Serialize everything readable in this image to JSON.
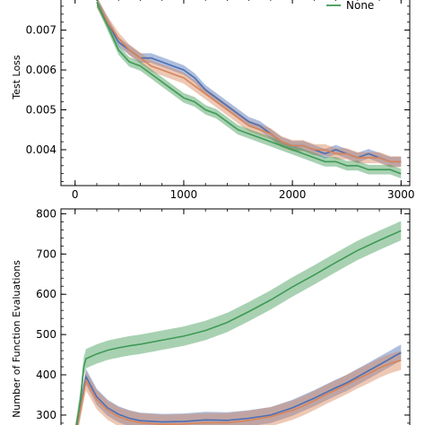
{
  "chart_data": [
    {
      "type": "line",
      "ylabel": "Test Loss",
      "xlabel": "",
      "xlim": [
        -130,
        3080
      ],
      "ylim": [
        0.0031,
        0.0078
      ],
      "x_ticks": [
        0,
        1000,
        2000,
        3000
      ],
      "x_tick_labels": [
        "0",
        "1000",
        "2000",
        "3000"
      ],
      "y_ticks": [
        0.004,
        0.005,
        0.006,
        0.007
      ],
      "y_tick_labels": [
        "0.004",
        "0.005",
        "0.006",
        "0.007"
      ],
      "legend": {
        "location": "top-right",
        "entries": [
          {
            "label": "None",
            "color": "#3f9a55"
          }
        ]
      },
      "series": [
        {
          "name": "",
          "color": "#4a6fb5",
          "x": [
            200,
            300,
            400,
            500,
            600,
            700,
            800,
            900,
            1000,
            1100,
            1200,
            1300,
            1400,
            1500,
            1600,
            1700,
            1800,
            1900,
            2000,
            2100,
            2200,
            2300,
            2400,
            2500,
            2600,
            2700,
            2800,
            2900,
            3000
          ],
          "y": [
            0.0077,
            0.0072,
            0.0067,
            0.0065,
            0.0063,
            0.0063,
            0.0062,
            0.0061,
            0.006,
            0.0058,
            0.0055,
            0.0053,
            0.0051,
            0.0049,
            0.0047,
            0.0046,
            0.0044,
            0.0042,
            0.0041,
            0.0041,
            0.004,
            0.0039,
            0.004,
            0.0039,
            0.0038,
            0.0039,
            0.0038,
            0.0037,
            0.0037
          ],
          "band": 0.00012
        },
        {
          "name": "",
          "color": "#d8845a",
          "x": [
            200,
            300,
            400,
            500,
            600,
            700,
            800,
            900,
            1000,
            1100,
            1200,
            1300,
            1400,
            1500,
            1600,
            1700,
            1800,
            1900,
            2000,
            2100,
            2200,
            2300,
            2400,
            2500,
            2600,
            2700,
            2800,
            2900,
            3000
          ],
          "y": [
            0.0077,
            0.0072,
            0.0068,
            0.0065,
            0.0063,
            0.0061,
            0.006,
            0.0059,
            0.0058,
            0.0056,
            0.0054,
            0.0052,
            0.005,
            0.0048,
            0.0046,
            0.0045,
            0.0044,
            0.0042,
            0.0041,
            0.0041,
            0.004,
            0.004,
            0.0039,
            0.0039,
            0.0038,
            0.0038,
            0.0038,
            0.0037,
            0.0037
          ],
          "band": 0.00014
        },
        {
          "name": "None",
          "color": "#3f9a55",
          "x": [
            200,
            300,
            400,
            500,
            600,
            700,
            800,
            900,
            1000,
            1100,
            1200,
            1300,
            1400,
            1500,
            1600,
            1700,
            1800,
            1900,
            2000,
            2100,
            2200,
            2300,
            2400,
            2500,
            2600,
            2700,
            2800,
            2900,
            3000
          ],
          "y": [
            0.0077,
            0.0071,
            0.0065,
            0.0062,
            0.0061,
            0.0059,
            0.0057,
            0.0055,
            0.0053,
            0.0052,
            0.005,
            0.0049,
            0.0047,
            0.0045,
            0.0044,
            0.0043,
            0.0042,
            0.0041,
            0.004,
            0.0039,
            0.0038,
            0.0037,
            0.0037,
            0.0036,
            0.0036,
            0.0035,
            0.0035,
            0.0035,
            0.0034
          ],
          "band": 0.00012
        }
      ]
    },
    {
      "type": "line",
      "ylabel": "Number of Function Evaluations",
      "xlabel": "",
      "xlim": [
        -130,
        3080
      ],
      "ylim": [
        262,
        812
      ],
      "y_ticks": [
        300,
        400,
        500,
        600,
        700,
        800
      ],
      "y_tick_labels": [
        "300",
        "400",
        "500",
        "600",
        "700",
        "800"
      ],
      "series": [
        {
          "name": "",
          "color": "#4a6fb5",
          "x": [
            0,
            50,
            100,
            200,
            300,
            400,
            500,
            600,
            800,
            1000,
            1200,
            1400,
            1600,
            1800,
            2000,
            2100,
            2200,
            2300,
            2400,
            2500,
            2600,
            2700,
            2800,
            2900,
            2950,
            3000
          ],
          "y": [
            250,
            320,
            395,
            345,
            318,
            302,
            292,
            286,
            283,
            284,
            288,
            287,
            292,
            300,
            318,
            330,
            342,
            355,
            368,
            380,
            395,
            410,
            425,
            440,
            448,
            455
          ],
          "band": 20
        },
        {
          "name": "",
          "color": "#d8845a",
          "x": [
            0,
            50,
            100,
            200,
            300,
            400,
            500,
            600,
            800,
            1000,
            1200,
            1400,
            1600,
            1800,
            2000,
            2100,
            2200,
            2300,
            2400,
            2500,
            2600,
            2700,
            2800,
            2900,
            2950,
            3000
          ],
          "y": [
            250,
            315,
            385,
            338,
            312,
            296,
            287,
            281,
            277,
            278,
            281,
            281,
            287,
            296,
            312,
            323,
            336,
            350,
            363,
            376,
            390,
            403,
            417,
            428,
            432,
            436
          ],
          "band": 24
        },
        {
          "name": "None",
          "color": "#3f9a55",
          "x": [
            0,
            50,
            80,
            100,
            150,
            200,
            300,
            400,
            500,
            600,
            800,
            1000,
            1200,
            1400,
            1600,
            1800,
            2000,
            2200,
            2400,
            2600,
            2800,
            3000
          ],
          "y": [
            250,
            340,
            420,
            440,
            446,
            452,
            461,
            467,
            472,
            476,
            486,
            496,
            510,
            530,
            557,
            586,
            618,
            648,
            679,
            709,
            734,
            758
          ],
          "band": 24
        }
      ]
    }
  ]
}
